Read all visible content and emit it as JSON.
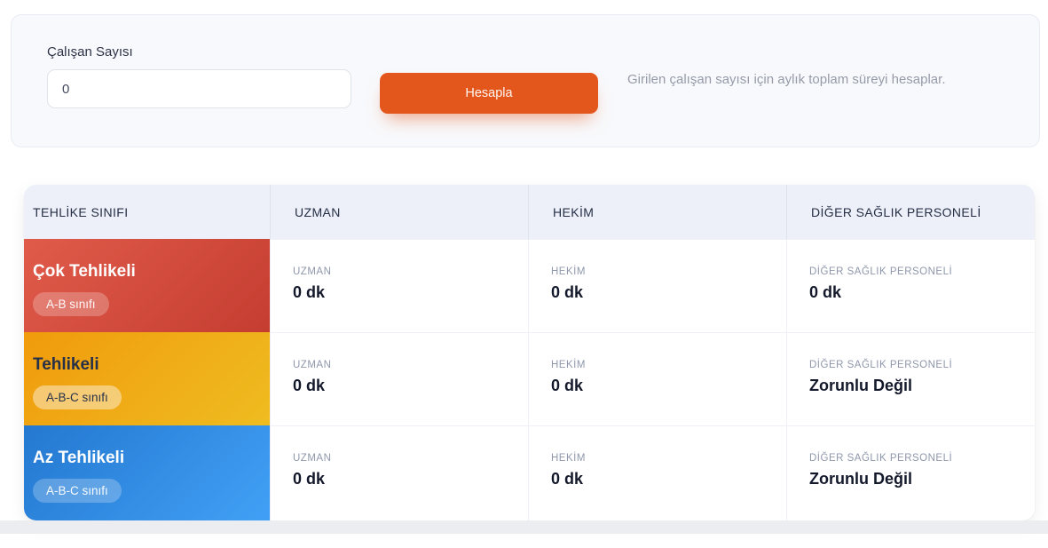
{
  "calculator": {
    "label": "Çalışan Sayısı",
    "input_value": "0",
    "button_label": "Hesapla",
    "description": "Girilen çalışan sayısı için aylık toplam süreyi hesaplar."
  },
  "table": {
    "headers": [
      "TEHLİKE SINIFI",
      "UZMAN",
      "HEKİM",
      "DİĞER SAĞLIK PERSONELİ"
    ],
    "rows": [
      {
        "class_name": "Çok Tehlikeli",
        "badge": "A-B sınıfı",
        "theme": "danger",
        "cells": [
          {
            "label": "UZMAN",
            "value": "0 dk"
          },
          {
            "label": "HEKİM",
            "value": "0 dk"
          },
          {
            "label": "DİĞER SAĞLIK PERSONELİ",
            "value": "0 dk"
          }
        ]
      },
      {
        "class_name": "Tehlikeli",
        "badge": "A-B-C sınıfı",
        "theme": "warning",
        "cells": [
          {
            "label": "UZMAN",
            "value": "0 dk"
          },
          {
            "label": "HEKİM",
            "value": "0 dk"
          },
          {
            "label": "DİĞER SAĞLIK PERSONELİ",
            "value": "Zorunlu Değil"
          }
        ]
      },
      {
        "class_name": "Az Tehlikeli",
        "badge": "A-B-C sınıfı",
        "theme": "info",
        "cells": [
          {
            "label": "UZMAN",
            "value": "0 dk"
          },
          {
            "label": "HEKİM",
            "value": "0 dk"
          },
          {
            "label": "DİĞER SAĞLIK PERSONELİ",
            "value": "Zorunlu Değil"
          }
        ]
      }
    ]
  },
  "colors": {
    "accent_button": "#e4571c",
    "panel_background": "#f8f9fc",
    "header_background": "#edf0f9",
    "footer_strip": "#ebedf0",
    "danger_gradient": [
      "#e15b4b",
      "#c43d30"
    ],
    "warning_gradient": [
      "#f09b0c",
      "#efbc20"
    ],
    "info_gradient": [
      "#2478d0",
      "#41a0f5"
    ]
  }
}
